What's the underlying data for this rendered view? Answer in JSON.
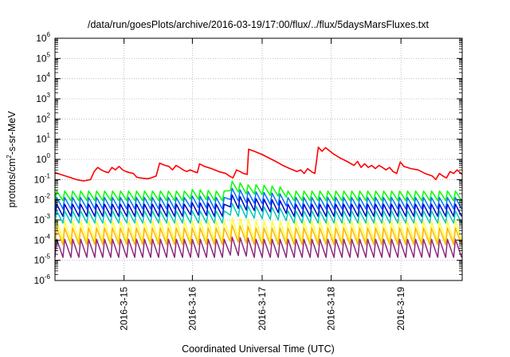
{
  "chart_data": {
    "type": "line",
    "title": "/data/run/goesPlots/archive/2016-03-19/17:00/flux/../flux/5daysMarsFluxes.txt",
    "xlabel": "Coordinated Universal Time (UTC)",
    "ylabel": {
      "base": "protons/cm",
      "sup": "2",
      "rest": "-s-sr-MeV"
    },
    "xlim": [
      0.0,
      5.72
    ],
    "ylim": [
      1e-06,
      1000000.0
    ],
    "yscale": "log",
    "grid": true,
    "x_ticks": [
      {
        "x": 0.97,
        "label": "2016-3-15"
      },
      {
        "x": 1.93,
        "label": "2016-3-16"
      },
      {
        "x": 2.91,
        "label": "2016-3-17"
      },
      {
        "x": 3.88,
        "label": "2016-3-18"
      },
      {
        "x": 4.86,
        "label": "2016-3-19"
      }
    ],
    "y_ticks": [
      {
        "value": 1e-06,
        "base": "10",
        "exp": "-6"
      },
      {
        "value": 1e-05,
        "base": "10",
        "exp": "-5"
      },
      {
        "value": 0.0001,
        "base": "10",
        "exp": "-4"
      },
      {
        "value": 0.001,
        "base": "10",
        "exp": "-3"
      },
      {
        "value": 0.01,
        "base": "10",
        "exp": "-2"
      },
      {
        "value": 0.1,
        "base": "10",
        "exp": "-1"
      },
      {
        "value": 1,
        "base": "10",
        "exp": "0"
      },
      {
        "value": 10,
        "base": "10",
        "exp": "1"
      },
      {
        "value": 100,
        "base": "10",
        "exp": "2"
      },
      {
        "value": 1000,
        "base": "10",
        "exp": "3"
      },
      {
        "value": 10000,
        "base": "10",
        "exp": "4"
      },
      {
        "value": 100000,
        "base": "10",
        "exp": "5"
      },
      {
        "value": 1000000,
        "base": "10",
        "exp": "6"
      }
    ],
    "series": [
      {
        "color": "#ff0000",
        "points": [
          [
            0,
            0.22
          ],
          [
            0.1,
            0.17
          ],
          [
            0.2,
            0.13
          ],
          [
            0.3,
            0.1
          ],
          [
            0.4,
            0.085
          ],
          [
            0.5,
            0.1
          ],
          [
            0.55,
            0.25
          ],
          [
            0.6,
            0.4
          ],
          [
            0.65,
            0.3
          ],
          [
            0.7,
            0.25
          ],
          [
            0.75,
            0.22
          ],
          [
            0.8,
            0.4
          ],
          [
            0.85,
            0.3
          ],
          [
            0.9,
            0.45
          ],
          [
            0.95,
            0.3
          ],
          [
            1.0,
            0.25
          ],
          [
            1.05,
            0.22
          ],
          [
            1.1,
            0.2
          ],
          [
            1.15,
            0.13
          ],
          [
            1.2,
            0.12
          ],
          [
            1.3,
            0.11
          ],
          [
            1.35,
            0.12
          ],
          [
            1.42,
            0.15
          ],
          [
            1.47,
            0.65
          ],
          [
            1.55,
            0.5
          ],
          [
            1.6,
            0.45
          ],
          [
            1.65,
            0.3
          ],
          [
            1.7,
            0.5
          ],
          [
            1.75,
            0.4
          ],
          [
            1.8,
            0.3
          ],
          [
            1.85,
            0.25
          ],
          [
            1.9,
            0.3
          ],
          [
            1.95,
            0.25
          ],
          [
            2.0,
            0.22
          ],
          [
            2.03,
            0.6
          ],
          [
            2.1,
            0.45
          ],
          [
            2.2,
            0.35
          ],
          [
            2.3,
            0.25
          ],
          [
            2.4,
            0.2
          ],
          [
            2.45,
            0.15
          ],
          [
            2.5,
            0.12
          ],
          [
            2.55,
            0.3
          ],
          [
            2.6,
            0.25
          ],
          [
            2.65,
            0.2
          ],
          [
            2.7,
            0.18
          ],
          [
            2.72,
            3.2
          ],
          [
            2.8,
            2.5
          ],
          [
            2.9,
            1.8
          ],
          [
            3.0,
            1.2
          ],
          [
            3.1,
            0.8
          ],
          [
            3.2,
            0.5
          ],
          [
            3.3,
            0.35
          ],
          [
            3.4,
            0.25
          ],
          [
            3.45,
            0.3
          ],
          [
            3.5,
            0.2
          ],
          [
            3.55,
            0.35
          ],
          [
            3.6,
            0.25
          ],
          [
            3.65,
            0.2
          ],
          [
            3.7,
            4.0
          ],
          [
            3.75,
            2.5
          ],
          [
            3.8,
            3.8
          ],
          [
            3.9,
            2.0
          ],
          [
            4.0,
            1.2
          ],
          [
            4.1,
            0.8
          ],
          [
            4.2,
            0.5
          ],
          [
            4.25,
            0.8
          ],
          [
            4.3,
            0.4
          ],
          [
            4.35,
            0.6
          ],
          [
            4.4,
            0.4
          ],
          [
            4.45,
            0.5
          ],
          [
            4.5,
            0.35
          ],
          [
            4.55,
            0.5
          ],
          [
            4.6,
            0.4
          ],
          [
            4.65,
            0.3
          ],
          [
            4.7,
            0.4
          ],
          [
            4.75,
            0.25
          ],
          [
            4.8,
            0.2
          ],
          [
            4.85,
            0.75
          ],
          [
            4.9,
            0.45
          ],
          [
            5.0,
            0.35
          ],
          [
            5.1,
            0.3
          ],
          [
            5.2,
            0.2
          ],
          [
            5.3,
            0.15
          ],
          [
            5.35,
            0.1
          ],
          [
            5.4,
            0.2
          ],
          [
            5.45,
            0.15
          ],
          [
            5.5,
            0.12
          ],
          [
            5.55,
            0.25
          ],
          [
            5.6,
            0.2
          ],
          [
            5.65,
            0.3
          ],
          [
            5.72,
            0.18
          ]
        ]
      },
      {
        "color": "#00ff00",
        "sawtooth": {
          "period": 0.112,
          "low": 0.009,
          "high": 0.027,
          "boosts": [
            [
              1.9,
              2.2,
              1.2
            ],
            [
              2.45,
              2.75,
              3.2
            ],
            [
              2.75,
              3.25,
              2.2
            ]
          ]
        }
      },
      {
        "color": "#0070ff",
        "sawtooth": {
          "period": 0.112,
          "low": 0.0035,
          "high": 0.013,
          "boosts": [
            [
              1.9,
              2.2,
              1.2
            ],
            [
              2.45,
              2.75,
              3.0
            ],
            [
              2.75,
              3.25,
              2.0
            ]
          ]
        }
      },
      {
        "color": "#0000cc",
        "sawtooth": {
          "period": 0.112,
          "low": 0.0015,
          "high": 0.006,
          "boosts": [
            [
              1.9,
              2.2,
              1.2
            ],
            [
              2.45,
              2.75,
              3.0
            ],
            [
              2.75,
              3.25,
              2.0
            ]
          ]
        }
      },
      {
        "color": "#00c8b4",
        "sawtooth": {
          "period": 0.112,
          "low": 0.0007,
          "high": 0.0028,
          "boosts": [
            [
              2.45,
              2.75,
              2.5
            ],
            [
              2.75,
              3.25,
              1.8
            ]
          ]
        }
      },
      {
        "color": "#ffff33",
        "sawtooth": {
          "period": 0.112,
          "low": 9e-05,
          "high": 0.0009,
          "boosts": [
            [
              2.45,
              2.75,
              1.5
            ]
          ]
        }
      },
      {
        "color": "#ffb400",
        "sawtooth": {
          "period": 0.112,
          "low": 6e-05,
          "high": 0.0004,
          "boosts": [
            [
              2.45,
              2.75,
              1.4
            ]
          ]
        }
      },
      {
        "color": "#8c2a7c",
        "sawtooth": {
          "period": 0.112,
          "low": 1.4e-05,
          "high": 0.00011,
          "boosts": [
            [
              2.45,
              2.75,
              1.3
            ]
          ]
        }
      }
    ]
  }
}
